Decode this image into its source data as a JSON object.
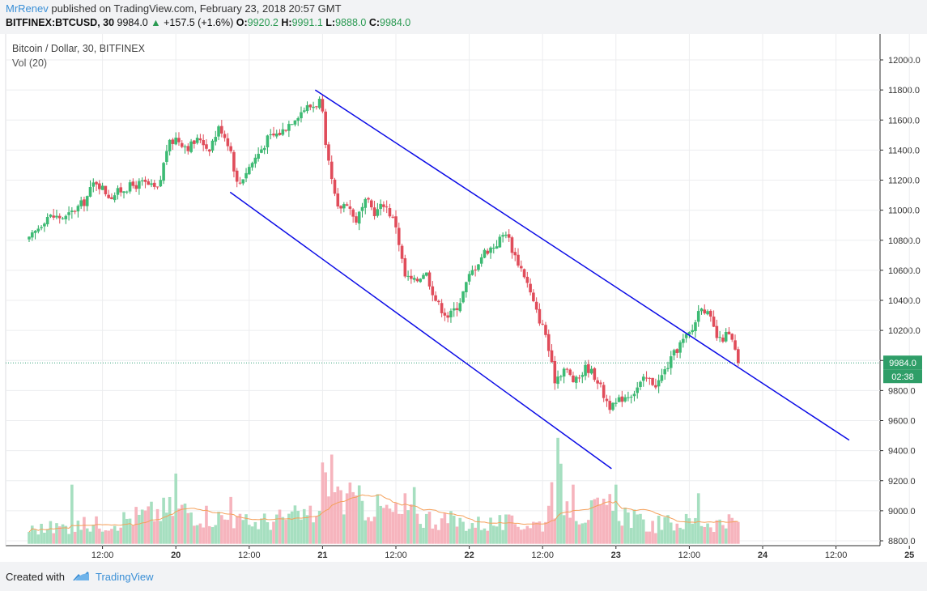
{
  "header": {
    "author": "MrRenev",
    "published_text": "published on TradingView.com, February 23, 2018 20:57 GMT",
    "symbol": "BITFINEX:BTCUSD, 30",
    "last": "9984.0",
    "change": "+157.5 (+1.6%)",
    "o_label": "O:",
    "o_value": "9920.2",
    "h_label": "H:",
    "h_value": "9991.1",
    "l_label": "L:",
    "l_value": "9888.0",
    "c_label": "C:",
    "c_value": "9984.0"
  },
  "legend": {
    "title": "Bitcoin / Dollar, 30, BITFINEX",
    "volume": "Vol (20)"
  },
  "footer": {
    "created_with": "Created with",
    "brand": "TradingView"
  },
  "colors": {
    "up": "#26a65b",
    "up_body": "#3dbb74",
    "down": "#e04c5a",
    "channel": "#0b0be6",
    "vol_up": "#a6dfc0",
    "vol_down": "#f6b4bd",
    "vol_ma": "#f5a05a",
    "price_line": "#35a37a"
  },
  "chart_data": {
    "type": "candlestick",
    "title": "Bitcoin / Dollar, 30, BITFINEX",
    "interval_minutes": 30,
    "x_ticks": [
      {
        "t": 0.5,
        "label": "12:00"
      },
      {
        "t": 1,
        "label": "20"
      },
      {
        "t": 1.5,
        "label": "12:00"
      },
      {
        "t": 2,
        "label": "21"
      },
      {
        "t": 2.5,
        "label": "12:00"
      },
      {
        "t": 3,
        "label": "22"
      },
      {
        "t": 3.5,
        "label": "12:00"
      },
      {
        "t": 4,
        "label": "23"
      },
      {
        "t": 4.5,
        "label": "12:00"
      },
      {
        "t": 5,
        "label": "24"
      },
      {
        "t": 5.5,
        "label": "12:00"
      },
      {
        "t": 6,
        "label": "25"
      }
    ],
    "y_ticks": [
      "12000.0",
      "11800.0",
      "11600.0",
      "11400.0",
      "11200.0",
      "11000.0",
      "10800.0",
      "10600.0",
      "10400.0",
      "10200.0",
      "10000.0",
      "9800.0",
      "9600.0",
      "9400.0",
      "9200.0",
      "9000.0",
      "8800.0"
    ],
    "ylim": [
      8750,
      12080
    ],
    "last_price": 9984.0,
    "last_price_label": "9984.0",
    "countdown_label": "02:38",
    "volume_overlay_bottom_price": 8780,
    "volume_overlay_top_price": 9600,
    "price_anchors": [
      {
        "t": 0.0,
        "p": 10800
      },
      {
        "t": 0.12,
        "p": 10960
      },
      {
        "t": 0.25,
        "p": 10950
      },
      {
        "t": 0.38,
        "p": 11060
      },
      {
        "t": 0.45,
        "p": 11200
      },
      {
        "t": 0.55,
        "p": 11090
      },
      {
        "t": 0.66,
        "p": 11150
      },
      {
        "t": 0.78,
        "p": 11180
      },
      {
        "t": 0.88,
        "p": 11130
      },
      {
        "t": 0.94,
        "p": 11420
      },
      {
        "t": 1.0,
        "p": 11480
      },
      {
        "t": 1.08,
        "p": 11420
      },
      {
        "t": 1.17,
        "p": 11480
      },
      {
        "t": 1.22,
        "p": 11400
      },
      {
        "t": 1.3,
        "p": 11560
      },
      {
        "t": 1.37,
        "p": 11420
      },
      {
        "t": 1.42,
        "p": 11160
      },
      {
        "t": 1.48,
        "p": 11260
      },
      {
        "t": 1.55,
        "p": 11360
      },
      {
        "t": 1.63,
        "p": 11480
      },
      {
        "t": 1.72,
        "p": 11520
      },
      {
        "t": 1.8,
        "p": 11610
      },
      {
        "t": 1.88,
        "p": 11680
      },
      {
        "t": 1.95,
        "p": 11700
      },
      {
        "t": 1.99,
        "p": 11740
      },
      {
        "t": 2.02,
        "p": 11410
      },
      {
        "t": 2.05,
        "p": 11260
      },
      {
        "t": 2.1,
        "p": 11000
      },
      {
        "t": 2.17,
        "p": 11060
      },
      {
        "t": 2.22,
        "p": 10920
      },
      {
        "t": 2.3,
        "p": 11060
      },
      {
        "t": 2.36,
        "p": 10980
      },
      {
        "t": 2.42,
        "p": 11050
      },
      {
        "t": 2.5,
        "p": 10900
      },
      {
        "t": 2.56,
        "p": 10560
      },
      {
        "t": 2.63,
        "p": 10520
      },
      {
        "t": 2.7,
        "p": 10600
      },
      {
        "t": 2.78,
        "p": 10380
      },
      {
        "t": 2.86,
        "p": 10290
      },
      {
        "t": 2.93,
        "p": 10380
      },
      {
        "t": 3.0,
        "p": 10560
      },
      {
        "t": 3.1,
        "p": 10720
      },
      {
        "t": 3.18,
        "p": 10770
      },
      {
        "t": 3.25,
        "p": 10860
      },
      {
        "t": 3.3,
        "p": 10720
      },
      {
        "t": 3.38,
        "p": 10560
      },
      {
        "t": 3.45,
        "p": 10340
      },
      {
        "t": 3.52,
        "p": 10180
      },
      {
        "t": 3.58,
        "p": 9870
      },
      {
        "t": 3.65,
        "p": 9950
      },
      {
        "t": 3.72,
        "p": 9850
      },
      {
        "t": 3.8,
        "p": 9960
      },
      {
        "t": 3.87,
        "p": 9880
      },
      {
        "t": 3.92,
        "p": 9760
      },
      {
        "t": 3.97,
        "p": 9680
      },
      {
        "t": 4.05,
        "p": 9760
      },
      {
        "t": 4.12,
        "p": 9790
      },
      {
        "t": 4.2,
        "p": 9880
      },
      {
        "t": 4.28,
        "p": 9840
      },
      {
        "t": 4.35,
        "p": 9960
      },
      {
        "t": 4.43,
        "p": 10100
      },
      {
        "t": 4.52,
        "p": 10200
      },
      {
        "t": 4.58,
        "p": 10380
      },
      {
        "t": 4.64,
        "p": 10280
      },
      {
        "t": 4.7,
        "p": 10120
      },
      {
        "t": 4.76,
        "p": 10180
      },
      {
        "t": 4.8,
        "p": 10110
      },
      {
        "t": 4.83,
        "p": 9984
      }
    ],
    "volume_anchors": [
      {
        "t": 0.0,
        "v": 0.14
      },
      {
        "t": 0.5,
        "v": 0.2
      },
      {
        "t": 1.0,
        "v": 0.35
      },
      {
        "t": 1.5,
        "v": 0.2
      },
      {
        "t": 1.98,
        "v": 0.3
      },
      {
        "t": 2.0,
        "v": 1.0
      },
      {
        "t": 2.12,
        "v": 0.45
      },
      {
        "t": 2.5,
        "v": 0.3
      },
      {
        "t": 3.0,
        "v": 0.2
      },
      {
        "t": 3.5,
        "v": 0.2
      },
      {
        "t": 3.6,
        "v": 0.5
      },
      {
        "t": 3.75,
        "v": 0.3
      },
      {
        "t": 4.0,
        "v": 0.35
      },
      {
        "t": 4.2,
        "v": 0.18
      },
      {
        "t": 4.5,
        "v": 0.22
      },
      {
        "t": 4.83,
        "v": 0.2
      }
    ],
    "volume_spikes": [
      {
        "t": 2.01,
        "v": 1.0
      },
      {
        "t": 1.99,
        "v": 0.66
      },
      {
        "t": 2.03,
        "v": 0.58
      },
      {
        "t": 3.6,
        "v": 0.86
      },
      {
        "t": 3.62,
        "v": 0.65
      },
      {
        "t": 3.57,
        "v": 0.5
      },
      {
        "t": 3.99,
        "v": 0.85
      },
      {
        "t": 4.01,
        "v": 0.48
      },
      {
        "t": 1.0,
        "v": 0.57
      },
      {
        "t": 0.3,
        "v": 0.48
      },
      {
        "t": 2.63,
        "v": 0.46
      },
      {
        "t": 2.57,
        "v": 0.41
      },
      {
        "t": 3.71,
        "v": 0.48
      },
      {
        "t": 4.56,
        "v": 0.41
      },
      {
        "t": 1.38,
        "v": 0.38
      }
    ],
    "channel_lines": [
      {
        "name": "upper",
        "t1": 1.95,
        "p1": 11800,
        "t2": 5.59,
        "p2": 9470
      },
      {
        "name": "lower",
        "t1": 1.37,
        "p1": 11120,
        "t2": 3.97,
        "p2": 9280
      }
    ]
  }
}
